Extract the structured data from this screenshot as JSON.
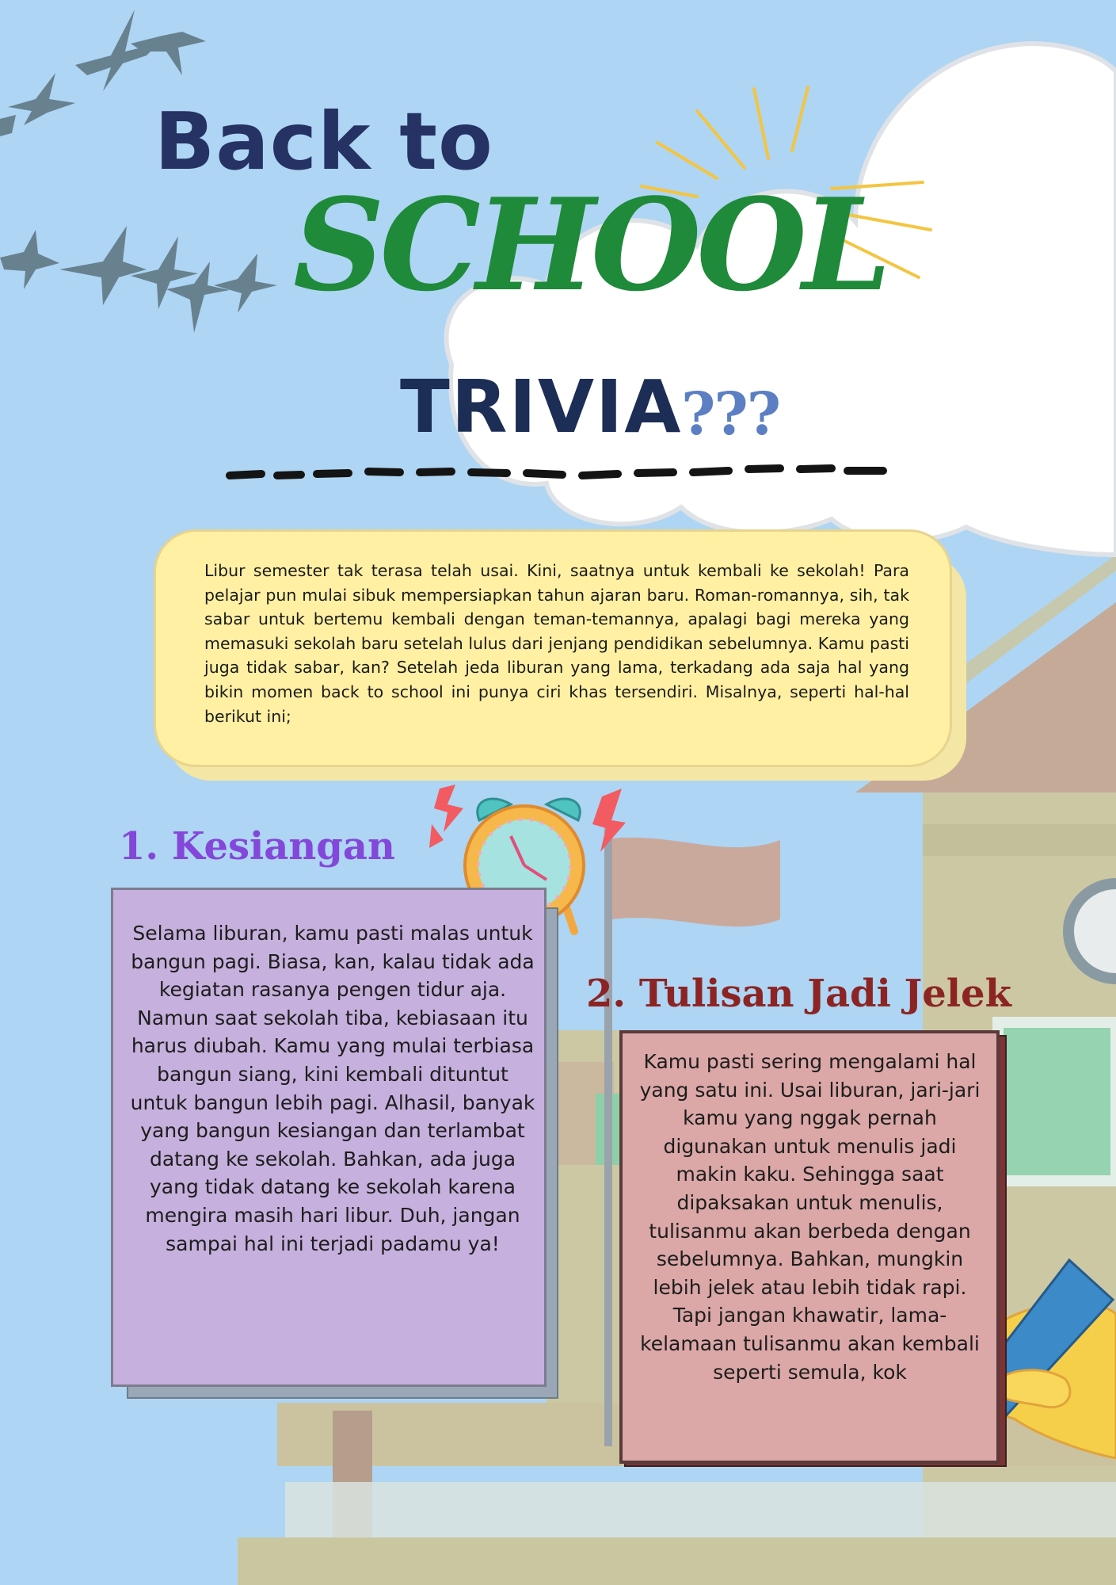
{
  "title": {
    "line1": "Back to",
    "line2": "SCHOOL",
    "line3": "TRIVIA",
    "marks": "???"
  },
  "intro": "Libur semester tak terasa telah usai. Kini, saatnya untuk kembali ke sekolah! Para pelajar pun mulai sibuk mempersiapkan tahun ajaran baru. Roman-romannya, sih, tak sabar untuk bertemu kembali dengan teman-temannya, apalagi bagi mereka yang memasuki sekolah baru setelah lulus dari jenjang pendidikan sebelumnya. Kamu pasti juga tidak sabar, kan? Setelah jeda liburan yang lama, terkadang ada saja hal yang bikin momen back to school ini punya ciri khas tersendiri. Misalnya, seperti hal-hal berikut ini;",
  "sections": [
    {
      "heading": "1. Kesiangan",
      "body": "Selama liburan, kamu pasti malas untuk bangun pagi. Biasa, kan, kalau tidak ada kegiatan rasanya pengen tidur aja. Namun saat sekolah tiba, kebiasaan itu harus diubah. Kamu yang mulai terbiasa bangun siang, kini kembali dituntut untuk bangun lebih pagi. Alhasil, banyak yang bangun kesiangan dan terlambat datang ke sekolah. Bahkan, ada juga yang tidak datang ke sekolah karena mengira masih hari libur. Duh, jangan sampai hal ini terjadi padamu ya!"
    },
    {
      "heading": "2. Tulisan Jadi Jelek",
      "body": "Kamu pasti sering mengalami hal yang satu ini. Usai liburan, jari-jari kamu yang nggak pernah digunakan untuk menulis jadi makin kaku. Sehingga saat dipaksakan untuk menulis, tulisanmu akan berbeda dengan sebelumnya. Bahkan, mungkin lebih jelek atau lebih tidak rapi. Tapi jangan khawatir, lama-kelamaan tulisanmu akan kembali seperti semula, kok"
    }
  ],
  "colors": {
    "sky": "#aed5f3",
    "title_dark": "#253263",
    "school_green": "#1f8a3a",
    "heading1": "#8347da",
    "heading2": "#8c2424",
    "intro_box": "#fff0a3",
    "box1": "#c6b0dd",
    "box2": "#dba7a7"
  },
  "icons": [
    "bird-flock-icon",
    "cloud-icon",
    "sun-rays-icon",
    "alarm-clock-icon",
    "school-building-icon",
    "flag-icon",
    "hand-with-pen-icon"
  ]
}
